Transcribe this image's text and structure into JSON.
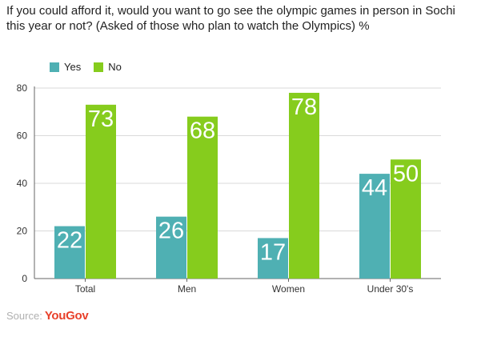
{
  "chart_data": {
    "type": "bar",
    "title": "If you could afford it, would you want to go see the olympic games in person in Sochi this year or not? (Asked of those who plan to watch the Olympics) %",
    "categories": [
      "Total",
      "Men",
      "Women",
      "Under 30's"
    ],
    "series": [
      {
        "name": "Yes",
        "values": [
          22,
          26,
          17,
          44
        ],
        "color": "#4fb0b3"
      },
      {
        "name": "No",
        "values": [
          73,
          68,
          78,
          50
        ],
        "color": "#86cc1d"
      }
    ],
    "y_ticks": [
      "0",
      "20",
      "40",
      "60",
      "80"
    ],
    "ylim": [
      0,
      80
    ],
    "grid": true,
    "legend": "top-left",
    "xlabel": "",
    "ylabel": ""
  },
  "source": {
    "label": "Source:",
    "brand": "YouGov"
  }
}
